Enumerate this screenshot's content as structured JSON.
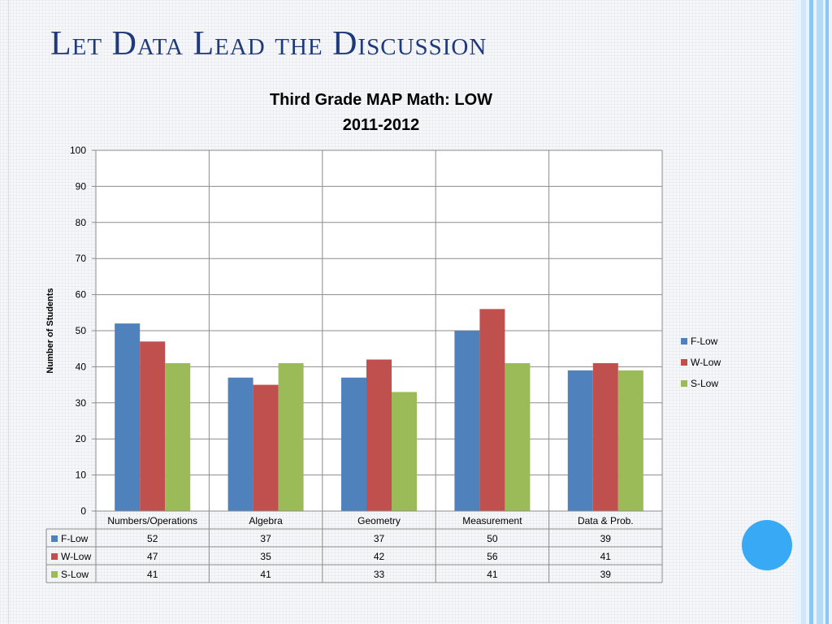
{
  "slide": {
    "title": "Let Data Lead the Discussion"
  },
  "colors": {
    "title": "#1f3a7a",
    "accent_circle": "#38a9f5",
    "stripe_light": "#cfe6fb",
    "stripe_mid": "#8cc7f4"
  },
  "chart_data": {
    "type": "bar",
    "title": "Third Grade MAP Math: LOW",
    "subtitle": "2011-2012",
    "ylabel": "Number of Students",
    "xlabel": "",
    "ylim": [
      0,
      100
    ],
    "yticks": [
      0,
      10,
      20,
      30,
      40,
      50,
      60,
      70,
      80,
      90,
      100
    ],
    "grid": true,
    "legend": "right",
    "categories": [
      "Numbers/Operations",
      "Algebra",
      "Geometry",
      "Measurement",
      "Data & Prob."
    ],
    "series": [
      {
        "name": "F-Low",
        "color": "#4f81bd",
        "values": [
          52,
          37,
          37,
          50,
          39
        ]
      },
      {
        "name": "W-Low",
        "color": "#c0504d",
        "values": [
          47,
          35,
          42,
          56,
          41
        ]
      },
      {
        "name": "S-Low",
        "color": "#9bbb59",
        "values": [
          41,
          41,
          33,
          41,
          39
        ]
      }
    ],
    "data_table": true
  }
}
